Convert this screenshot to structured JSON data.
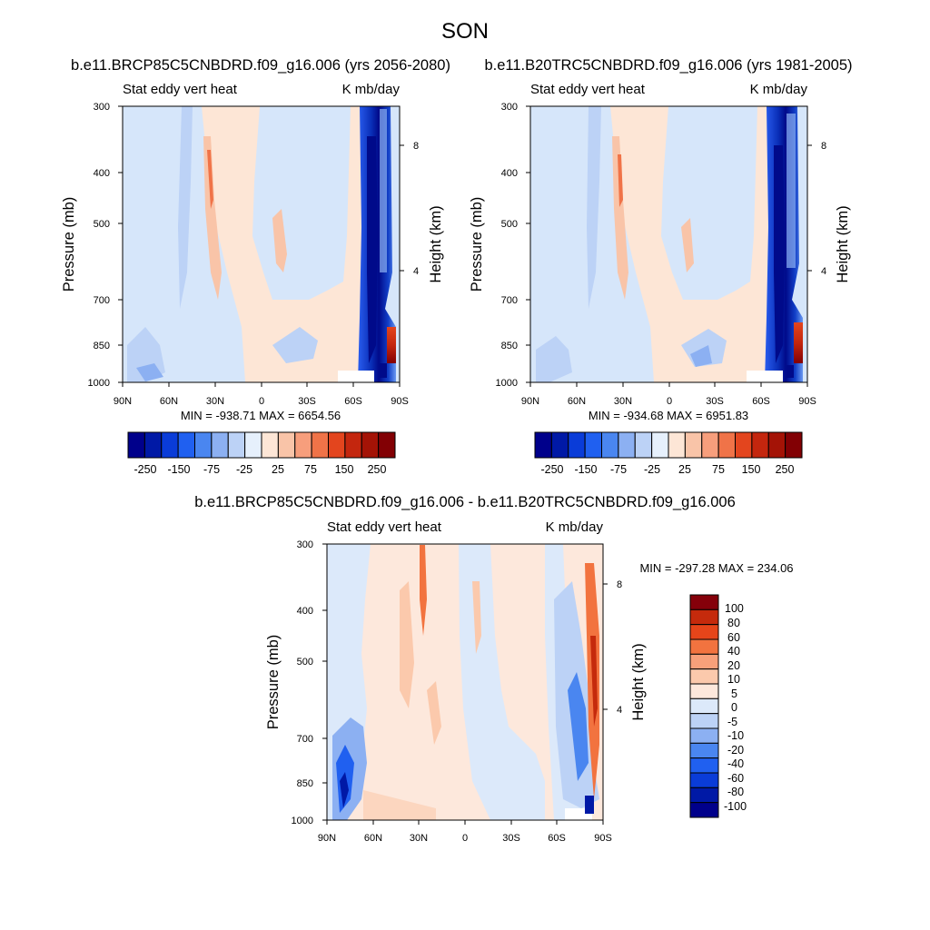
{
  "figure": {
    "main_title": "SON",
    "colors": {
      "abs_scale": [
        "#00008b",
        "#0019a6",
        "#0a3cd8",
        "#2060f0",
        "#4a86f0",
        "#8cb0f2",
        "#bcd2f6",
        "#e6f0fc",
        "#fde6d6",
        "#f9c4a8",
        "#f79e7c",
        "#f07348",
        "#e3451e",
        "#c4260e",
        "#a41306",
        "#820004"
      ],
      "diff_scale": [
        "#00008b",
        "#0019a6",
        "#0a3cd8",
        "#2060f0",
        "#4a86f0",
        "#8cb0f2",
        "#bcd2f6",
        "#dce9fa",
        "#fde8dc",
        "#fbc9ac",
        "#f7a07a",
        "#f2733f",
        "#e6451a",
        "#c52a0c",
        "#85000a"
      ]
    }
  },
  "chart_data": [
    {
      "type": "heatmap",
      "id": "left",
      "title": "b.e11.BRCP85C5CNBDRD.f09_g16.006 (yrs 2056-2080)",
      "left_label": "Stat eddy vert heat",
      "right_label": "K mb/day",
      "ylabel": "Pressure (mb)",
      "ylabel_right": "Height (km)",
      "x_ticks": [
        "90N",
        "60N",
        "30N",
        "0",
        "30S",
        "60S",
        "90S"
      ],
      "y_ticks": [
        "300",
        "400",
        "500",
        "700",
        "850",
        "1000"
      ],
      "y_ticks_right": [
        "8",
        "4"
      ],
      "stats": "MIN = -938.71  MAX = 6654.56",
      "colorbar_labels": [
        "-250",
        "-150",
        "-75",
        "-25",
        "25",
        "75",
        "150",
        "250"
      ]
    },
    {
      "type": "heatmap",
      "id": "right",
      "title": "b.e11.B20TRC5CNBDRD.f09_g16.006 (yrs 1981-2005)",
      "left_label": "Stat eddy vert heat",
      "right_label": "K mb/day",
      "ylabel": "Pressure (mb)",
      "ylabel_right": "Height (km)",
      "x_ticks": [
        "90N",
        "60N",
        "30N",
        "0",
        "30S",
        "60S",
        "90S"
      ],
      "y_ticks": [
        "300",
        "400",
        "500",
        "700",
        "850",
        "1000"
      ],
      "y_ticks_right": [
        "8",
        "4"
      ],
      "stats": "MIN = -934.68  MAX = 6951.83",
      "colorbar_labels": [
        "-250",
        "-150",
        "-75",
        "-25",
        "25",
        "75",
        "150",
        "250"
      ]
    },
    {
      "type": "heatmap",
      "id": "diff",
      "title": "b.e11.BRCP85C5CNBDRD.f09_g16.006 - b.e11.B20TRC5CNBDRD.f09_g16.006",
      "left_label": "Stat eddy vert heat",
      "right_label": "K mb/day",
      "ylabel": "Pressure (mb)",
      "ylabel_right": "Height (km)",
      "x_ticks": [
        "90N",
        "60N",
        "30N",
        "0",
        "30S",
        "60S",
        "90S"
      ],
      "y_ticks": [
        "300",
        "400",
        "500",
        "700",
        "850",
        "1000"
      ],
      "y_ticks_right": [
        "8",
        "4"
      ],
      "stats": "MIN = -297.28  MAX = 234.06",
      "colorbar_labels": [
        "100",
        "80",
        "60",
        "40",
        "20",
        "10",
        "5",
        "0",
        "-5",
        "-10",
        "-20",
        "-40",
        "-60",
        "-80",
        "-100"
      ]
    }
  ]
}
